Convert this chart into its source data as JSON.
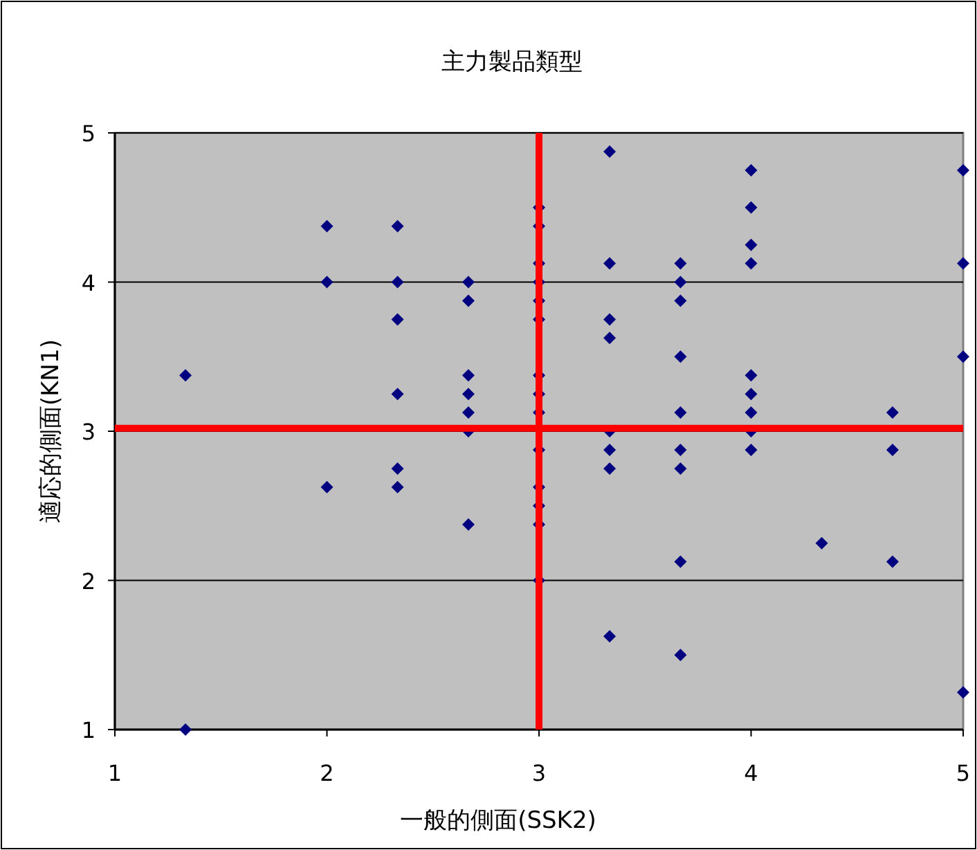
{
  "chart_data": {
    "type": "scatter",
    "title": "主力製品類型",
    "xlabel": "一般的側面(SSK2)",
    "ylabel": "適応的側面(KN1)",
    "xlim": [
      1,
      5
    ],
    "ylim": [
      1,
      5
    ],
    "xticks": [
      1,
      2,
      3,
      4,
      5
    ],
    "yticks": [
      1,
      2,
      3,
      4,
      5
    ],
    "grid": "y",
    "marker": "diamond",
    "series": [
      {
        "color": "#000080",
        "x": [
          1.333,
          1.333,
          2,
          2,
          2,
          2.333,
          2.333,
          2.333,
          2.333,
          2.333,
          2.333,
          2.667,
          2.667,
          2.667,
          2.667,
          2.667,
          2.667,
          2.667,
          3,
          3,
          3,
          3,
          3,
          3,
          3,
          3,
          3,
          3,
          3,
          3,
          3,
          3,
          3.333,
          3.333,
          3.333,
          3.333,
          3.333,
          3.333,
          3.333,
          3.333,
          3.667,
          3.667,
          3.667,
          3.667,
          3.667,
          3.667,
          3.667,
          3.667,
          3.667,
          4,
          4,
          4,
          4,
          4,
          4,
          4,
          4,
          4,
          4.333,
          4.667,
          4.667,
          4.667,
          5,
          5,
          5,
          5
        ],
        "values": [
          3.375,
          1,
          4.375,
          4,
          2.625,
          4.375,
          4,
          3.75,
          3.25,
          2.75,
          2.625,
          4,
          3.875,
          3.375,
          3.25,
          3.125,
          3,
          2.375,
          4.5,
          4.375,
          4.125,
          4,
          3.875,
          3.75,
          3.375,
          3.25,
          3.125,
          2.875,
          2.625,
          2.5,
          2.375,
          2,
          4.875,
          4.125,
          3.75,
          3.625,
          3,
          2.875,
          2.75,
          1.625,
          4.125,
          4,
          3.875,
          3.5,
          3.125,
          2.875,
          2.75,
          2.125,
          1.5,
          4.75,
          4.5,
          4.25,
          4.125,
          3.375,
          3.25,
          3.125,
          3,
          2.875,
          2.25,
          3.125,
          2.875,
          2.125,
          4.75,
          4.125,
          3.5,
          1.25
        ]
      }
    ],
    "ref_lines": [
      {
        "axis": "x",
        "value": 3,
        "color": "#ff0000"
      },
      {
        "axis": "y",
        "value": 3.02,
        "color": "#ff0000"
      }
    ]
  }
}
